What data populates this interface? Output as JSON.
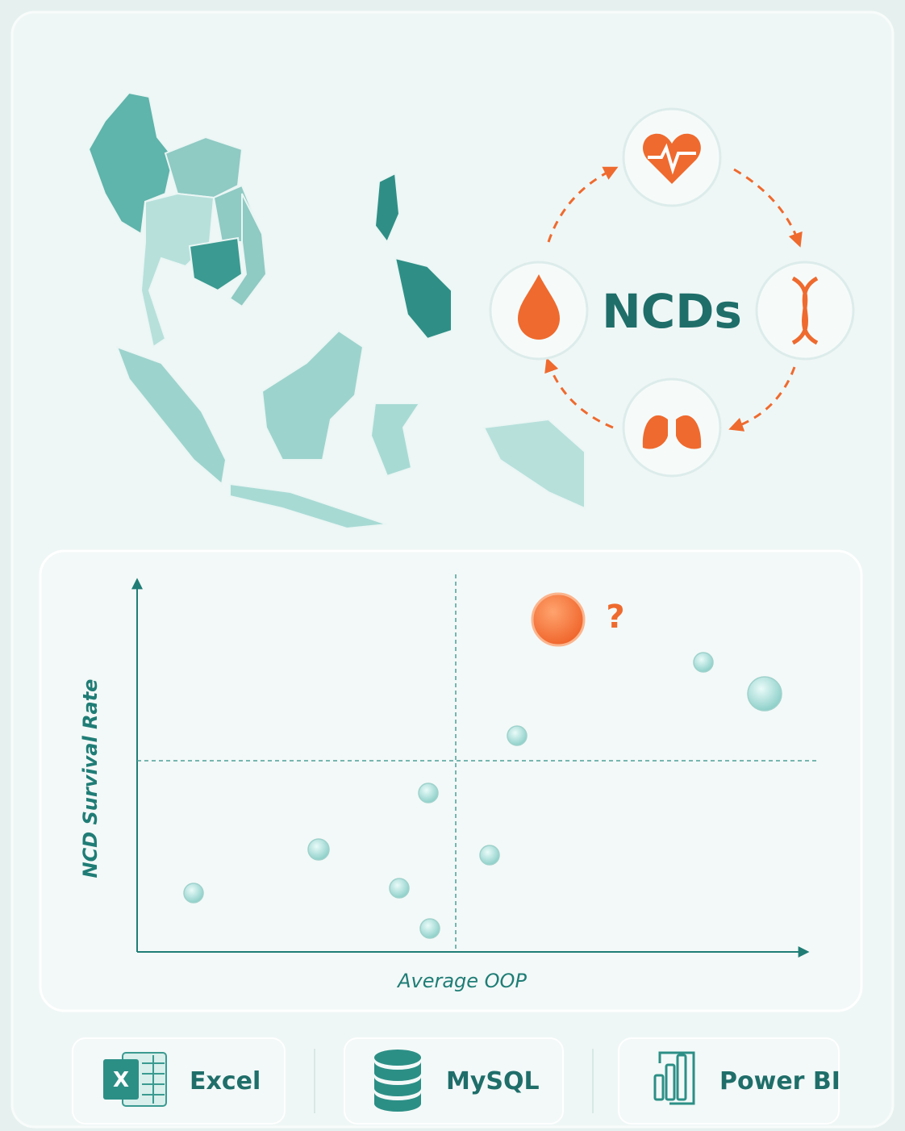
{
  "cycle": {
    "center_label": "NCDs"
  },
  "scatter": {
    "y_label": "NCD Survival Rate",
    "x_label": "Average OOP",
    "highlight_mark": "?"
  },
  "tools": [
    {
      "icon_letter": "X",
      "label": "Excel"
    },
    {
      "label": "MySQL"
    },
    {
      "label": "Power BI"
    }
  ]
}
